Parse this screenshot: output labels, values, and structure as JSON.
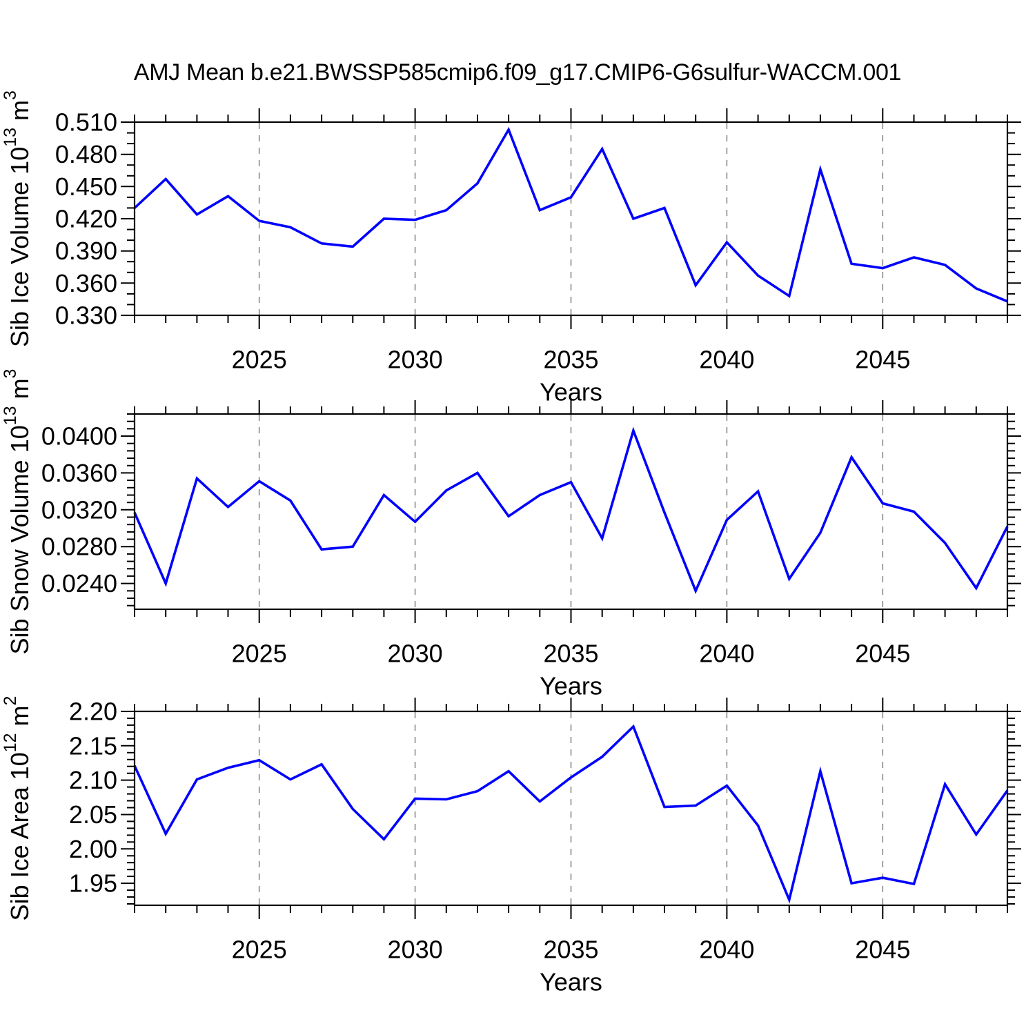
{
  "title": "AMJ Mean b.e21.BWSSP585cmip6.f09_g17.CMIP6-G6sulfur-WACCM.001",
  "colors": {
    "series": "#0000ff",
    "grid": "#8a8a8a",
    "frame": "#000000",
    "text": "#000000",
    "background": "#ffffff"
  },
  "chart_data": [
    {
      "type": "line",
      "ylabel_segments": [
        {
          "t": "Sib Ice Volume 10"
        },
        {
          "t": "13",
          "sup": true
        },
        {
          "t": " m"
        },
        {
          "t": "3",
          "sup": true
        }
      ],
      "xlabel": "Years",
      "x": [
        2021,
        2022,
        2023,
        2024,
        2025,
        2026,
        2027,
        2028,
        2029,
        2030,
        2031,
        2032,
        2033,
        2034,
        2035,
        2036,
        2037,
        2038,
        2039,
        2040,
        2041,
        2042,
        2043,
        2044,
        2045,
        2046,
        2047,
        2048,
        2049
      ],
      "values": [
        0.43,
        0.457,
        0.424,
        0.441,
        0.418,
        0.412,
        0.397,
        0.394,
        0.42,
        0.419,
        0.428,
        0.453,
        0.503,
        0.428,
        0.44,
        0.485,
        0.42,
        0.43,
        0.358,
        0.398,
        0.367,
        0.348,
        0.466,
        0.378,
        0.374,
        0.384,
        0.377,
        0.355,
        0.343
      ],
      "xlim": [
        2021,
        2049
      ],
      "ylim": [
        0.33,
        0.51
      ],
      "xticks": {
        "major": [
          2025,
          2030,
          2035,
          2040,
          2045
        ],
        "labels": [
          "2025",
          "2030",
          "2035",
          "2040",
          "2045"
        ],
        "minor_step": 1
      },
      "yticks": {
        "values": [
          0.33,
          0.36,
          0.39,
          0.42,
          0.45,
          0.48,
          0.51
        ],
        "labels": [
          "0.330",
          "0.360",
          "0.390",
          "0.420",
          "0.450",
          "0.480",
          "0.510"
        ],
        "minor_step": 0.01,
        "minor_per_major": 3
      },
      "grid_vertical_dashed_at_major": true
    },
    {
      "type": "line",
      "ylabel_segments": [
        {
          "t": "Sib Snow Volume 10"
        },
        {
          "t": "13",
          "sup": true
        },
        {
          "t": " m"
        },
        {
          "t": "3",
          "sup": true
        }
      ],
      "xlabel": "Years",
      "x": [
        2021,
        2022,
        2023,
        2024,
        2025,
        2026,
        2027,
        2028,
        2029,
        2030,
        2031,
        2032,
        2033,
        2034,
        2035,
        2036,
        2037,
        2038,
        2039,
        2040,
        2041,
        2042,
        2043,
        2044,
        2045,
        2046,
        2047,
        2048,
        2049
      ],
      "values": [
        0.0317,
        0.024,
        0.0354,
        0.0323,
        0.0351,
        0.033,
        0.0277,
        0.028,
        0.0336,
        0.0307,
        0.0341,
        0.036,
        0.0313,
        0.0336,
        0.035,
        0.0289,
        0.0406,
        0.0317,
        0.0232,
        0.0309,
        0.034,
        0.0245,
        0.0295,
        0.0377,
        0.0327,
        0.0318,
        0.0284,
        0.0235,
        0.0302
      ],
      "xlim": [
        2021,
        2049
      ],
      "ylim": [
        0.0212,
        0.0424
      ],
      "xticks": {
        "major": [
          2025,
          2030,
          2035,
          2040,
          2045
        ],
        "labels": [
          "2025",
          "2030",
          "2035",
          "2040",
          "2045"
        ],
        "minor_step": 1
      },
      "yticks": {
        "values": [
          0.024,
          0.028,
          0.032,
          0.036,
          0.04
        ],
        "labels": [
          "0.0240",
          "0.0280",
          "0.0320",
          "0.0360",
          "0.0400"
        ],
        "minor_step": 0.0008,
        "minor_per_major": 5
      },
      "grid_vertical_dashed_at_major": true
    },
    {
      "type": "line",
      "ylabel_segments": [
        {
          "t": "Sib Ice Area 10"
        },
        {
          "t": "12",
          "sup": true
        },
        {
          "t": " m"
        },
        {
          "t": "2",
          "sup": true
        }
      ],
      "xlabel": "Years",
      "x": [
        2021,
        2022,
        2023,
        2024,
        2025,
        2026,
        2027,
        2028,
        2029,
        2030,
        2031,
        2032,
        2033,
        2034,
        2035,
        2036,
        2037,
        2038,
        2039,
        2040,
        2041,
        2042,
        2043,
        2044,
        2045,
        2046,
        2047,
        2048,
        2049
      ],
      "values": [
        2.121,
        2.022,
        2.101,
        2.118,
        2.129,
        2.101,
        2.123,
        2.058,
        2.014,
        2.073,
        2.072,
        2.084,
        2.113,
        2.069,
        2.104,
        2.134,
        2.178,
        2.061,
        2.063,
        2.092,
        2.034,
        1.926,
        2.113,
        1.95,
        1.958,
        1.949,
        2.094,
        2.021,
        2.085
      ],
      "xlim": [
        2021,
        2049
      ],
      "ylim": [
        1.918,
        2.2
      ],
      "xticks": {
        "major": [
          2025,
          2030,
          2035,
          2040,
          2045
        ],
        "labels": [
          "2025",
          "2030",
          "2035",
          "2040",
          "2045"
        ],
        "minor_step": 1
      },
      "yticks": {
        "values": [
          1.95,
          2.0,
          2.05,
          2.1,
          2.15,
          2.2
        ],
        "labels": [
          "1.95",
          "2.00",
          "2.05",
          "2.10",
          "2.15",
          "2.20"
        ],
        "minor_step": 0.01,
        "minor_per_major": 5
      },
      "grid_vertical_dashed_at_major": true
    }
  ]
}
